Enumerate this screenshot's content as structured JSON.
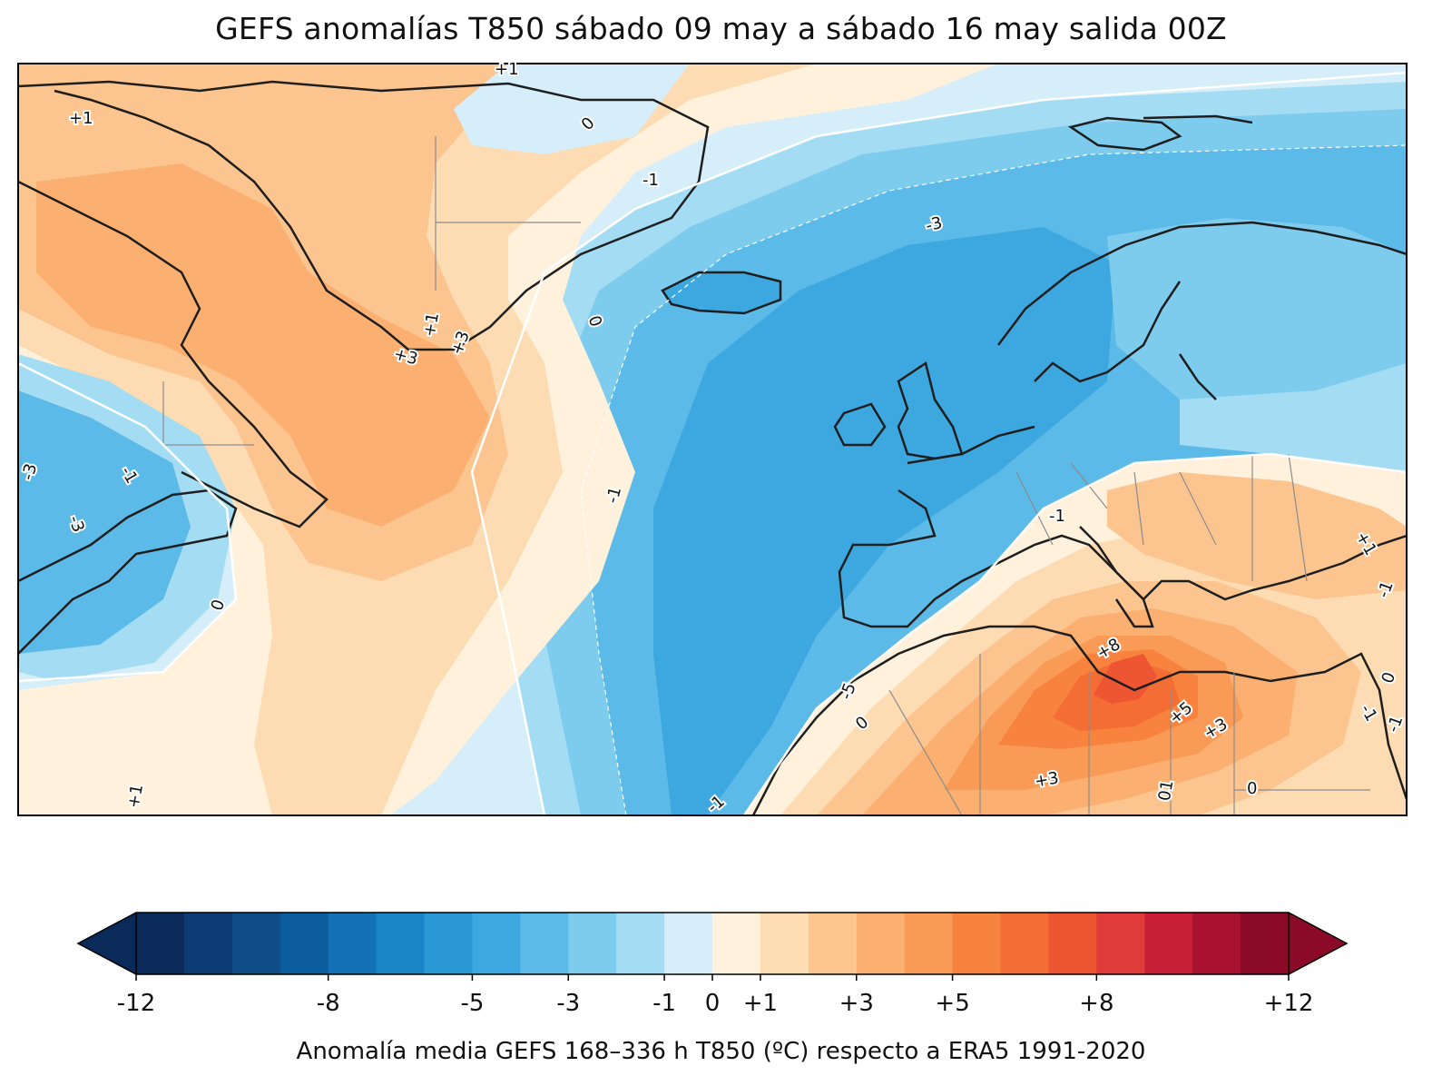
{
  "title": "GEFS anomalías T850 sábado 09 may a sábado 16 may salida 00Z",
  "colorbar": {
    "label": "Anomalía media GEFS 168–336 h T850 (ºC) respecto a ERA5 1991-2020",
    "tick_labels": [
      "-12",
      "-8",
      "-5",
      "-3",
      "-1",
      "0",
      "+1",
      "+3",
      "+5",
      "+8",
      "+12"
    ],
    "tick_values": [
      -12,
      -8,
      -5,
      -3,
      -1,
      0,
      1,
      3,
      5,
      8,
      12
    ],
    "colors": [
      "#0a2a5a",
      "#0d3b73",
      "#0f4c88",
      "#0b5d9e",
      "#1471b5",
      "#1a86c8",
      "#2b98d6",
      "#3da8e0",
      "#5cbae8",
      "#7dcbed",
      "#a4dcf3",
      "#d6eef9",
      "#fff1dc",
      "#fddcb3",
      "#fcc58f",
      "#fbb072",
      "#f99a57",
      "#f7833f",
      "#f46d34",
      "#ee5633",
      "#e03a3a",
      "#c81f37",
      "#a91230",
      "#8a0a28"
    ],
    "extend": "both"
  },
  "contour_labels": [
    "+1",
    "+1",
    "0",
    "-1",
    "-3",
    "0",
    "+1",
    "+3",
    "+3",
    "-3",
    "-1",
    "-3",
    "0",
    "-1",
    "-1",
    "+8",
    "+5",
    "+3",
    "+3",
    "0",
    "-5",
    "0",
    "-1",
    "+1",
    "01",
    "+1",
    "-1",
    "0",
    "-1",
    "-1"
  ],
  "colors": {
    "coast": "#1e1e1e",
    "border": "#8c8c8c",
    "frame": "#000000"
  }
}
